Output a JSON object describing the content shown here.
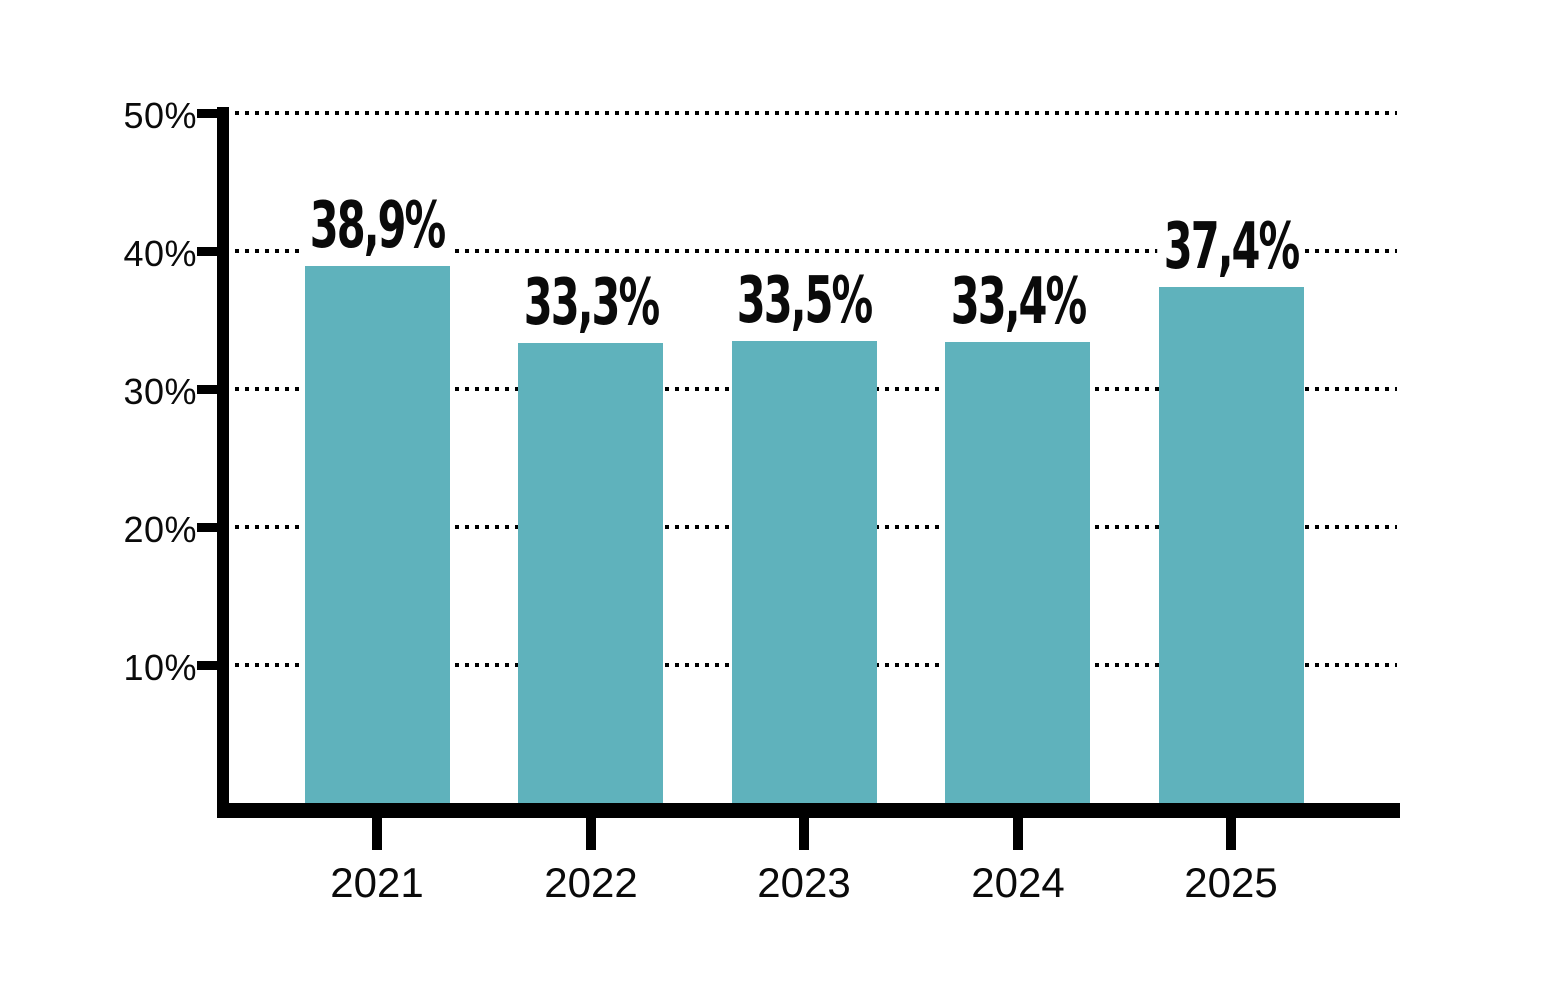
{
  "chart_data": {
    "type": "bar",
    "title": "",
    "xlabel": "",
    "ylabel": "",
    "categories": [
      "2021",
      "2022",
      "2023",
      "2024",
      "2025"
    ],
    "values": [
      38.9,
      33.3,
      33.5,
      33.4,
      37.4
    ],
    "value_labels": [
      "38,9%",
      "33,3%",
      "33,5%",
      "33,4%",
      "37,4%"
    ],
    "y_ticks": [
      {
        "value": 50,
        "label": "50%"
      },
      {
        "value": 40,
        "label": "40%"
      },
      {
        "value": 30,
        "label": "30%"
      },
      {
        "value": 20,
        "label": "20%"
      },
      {
        "value": 10,
        "label": "10%"
      }
    ],
    "ylim": [
      0,
      50
    ],
    "grid": "dotted-horizontal",
    "legend": "none",
    "colors": {
      "bar": "#5FB2BC",
      "axis": "#000000",
      "text": "#0A0A0A",
      "background": "#FFFFFF"
    }
  }
}
